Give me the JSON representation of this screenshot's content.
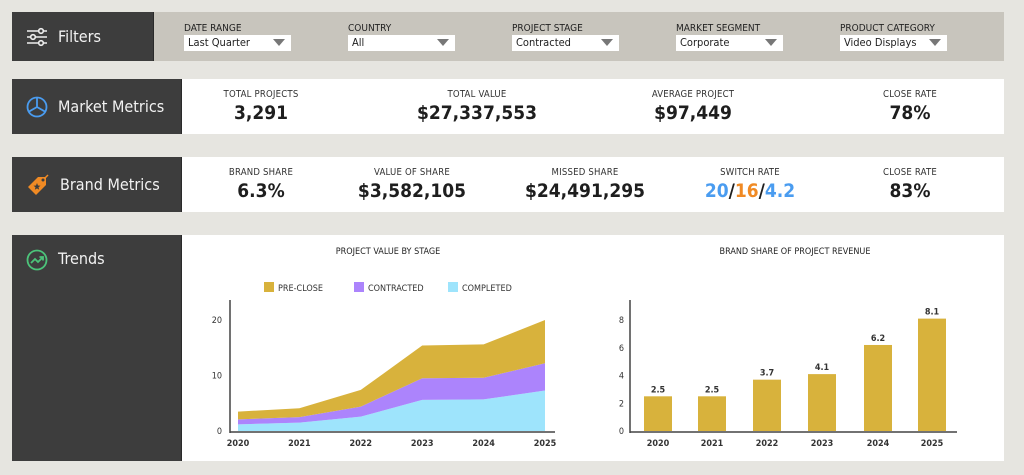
{
  "filters": {
    "title": "Filters",
    "icon": "sliders-icon",
    "items": [
      {
        "label": "DATE RANGE",
        "value": "Last Quarter"
      },
      {
        "label": "COUNTRY",
        "value": "All"
      },
      {
        "label": "PROJECT STAGE",
        "value": "Contracted"
      },
      {
        "label": "MARKET SEGMENT",
        "value": "Corporate"
      },
      {
        "label": "PRODUCT CATEGORY",
        "value": "Video Displays"
      }
    ]
  },
  "market": {
    "title": "Market Metrics",
    "icon": "pie-chart-icon",
    "metrics": [
      {
        "label": "TOTAL PROJECTS",
        "value": "3,291"
      },
      {
        "label": "TOTAL VALUE",
        "value": "$27,337,553"
      },
      {
        "label": "AVERAGE PROJECT",
        "value": "$97,449"
      },
      {
        "label": "CLOSE RATE",
        "value": "78%"
      }
    ]
  },
  "brand": {
    "title": "Brand Metrics",
    "icon": "tag-icon",
    "metrics": [
      {
        "label": "BRAND SHARE",
        "value": "6.3%"
      },
      {
        "label": "VALUE OF SHARE",
        "value": "$3,582,105"
      },
      {
        "label": "MISSED SHARE",
        "value": "$24,491,295"
      },
      {
        "label": "SWITCH RATE",
        "parts": [
          "20",
          "16",
          "4.2"
        ],
        "sep": "/"
      },
      {
        "label": "CLOSE RATE",
        "value": "83%"
      }
    ]
  },
  "colors": {
    "blue": "#4a9cf0",
    "orange": "#f08a24",
    "preclose": "#d8b23c",
    "contracted": "#ac84fc",
    "completed": "#9ee4fc",
    "bar": "#d8b23c"
  },
  "trends": {
    "title": "Trends",
    "icon": "trend-up-icon"
  },
  "chart_data": [
    {
      "type": "area",
      "stacked": true,
      "title": "PROJECT VALUE BY STAGE",
      "x": [
        "2020",
        "2021",
        "2022",
        "2023",
        "2024",
        "2025"
      ],
      "ylim": [
        0,
        20
      ],
      "yticks": [
        0,
        10,
        20
      ],
      "legend": "top",
      "series": [
        {
          "name": "PRE-CLOSE",
          "values": [
            1.4,
            1.6,
            3.0,
            5.9,
            6.0,
            7.8
          ]
        },
        {
          "name": "CONTRACTED",
          "values": [
            0.9,
            1.0,
            1.8,
            3.9,
            3.9,
            4.9
          ]
        },
        {
          "name": "COMPLETED",
          "values": [
            1.2,
            1.5,
            2.6,
            5.6,
            5.7,
            7.3
          ]
        }
      ]
    },
    {
      "type": "bar",
      "title": "BRAND SHARE OF PROJECT REVENUE",
      "categories": [
        "2020",
        "2021",
        "2022",
        "2023",
        "2024",
        "2025"
      ],
      "values": [
        2.5,
        2.5,
        3.7,
        4.1,
        6.2,
        8.1
      ],
      "ylim": [
        0,
        8
      ],
      "yticks": [
        0,
        2,
        4,
        6,
        8
      ]
    }
  ]
}
